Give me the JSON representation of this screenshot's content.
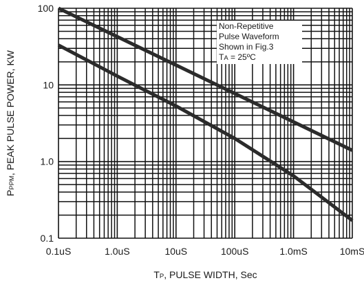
{
  "chart_data": {
    "type": "line",
    "x_scale": "log",
    "y_scale": "log",
    "xlim": [
      0.1,
      10000
    ],
    "ylim": [
      0.1,
      100
    ],
    "x_unit_note": "microseconds",
    "grid": true,
    "x_ticks": [
      {
        "value": 0.1,
        "label": "0.1uS"
      },
      {
        "value": 1,
        "label": "1.0uS"
      },
      {
        "value": 10,
        "label": "10uS"
      },
      {
        "value": 100,
        "label": "100uS"
      },
      {
        "value": 1000,
        "label": "1.0mS"
      },
      {
        "value": 10000,
        "label": "10mS"
      }
    ],
    "y_ticks": [
      {
        "value": 0.1,
        "label": "0.1"
      },
      {
        "value": 1,
        "label": "1.0"
      },
      {
        "value": 10,
        "label": "10"
      },
      {
        "value": 100,
        "label": "100"
      }
    ],
    "xlabel": {
      "main": "T",
      "sub": "P",
      "rest": ", PULSE WIDTH, Sec"
    },
    "ylabel": {
      "main": "P",
      "sub": "PPM",
      "rest": ", PEAK PULSE POWER, KW"
    },
    "annotation": {
      "lines": [
        "Non-Repetitive",
        "Pulse Waveform",
        "Shown in Fig.3"
      ],
      "last_main": "T",
      "last_sub": "A",
      "last_rest": " = 25ºC"
    },
    "series": [
      {
        "x": [
          0.1,
          10000
        ],
        "y": [
          100,
          1.4
        ]
      },
      {
        "x": [
          0.1,
          1,
          10,
          100,
          1000,
          10000
        ],
        "y": [
          33,
          13,
          5.3,
          2.0,
          0.65,
          0.17
        ]
      }
    ],
    "colors": {
      "line": "#2b2b2b",
      "grid": "#111111"
    }
  }
}
